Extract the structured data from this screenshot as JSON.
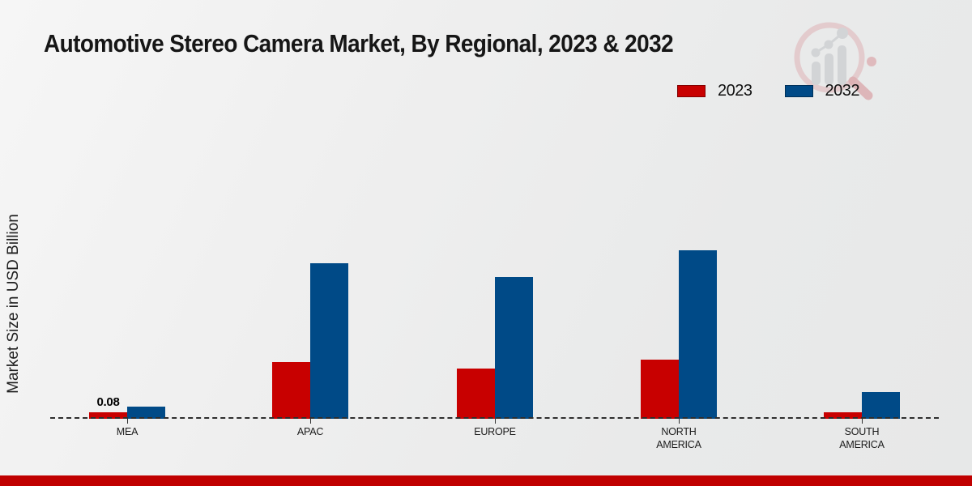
{
  "header": {
    "title": "Automotive Stereo Camera Market, By Regional, 2023 & 2032"
  },
  "icons": {
    "logo": "magnifier-bar-chart-logo"
  },
  "chart_data": {
    "type": "bar",
    "title": "Automotive Stereo Camera Market, By Regional, 2023 & 2032",
    "categories": [
      "MEA",
      "APAC",
      "EUROPE",
      "NORTH AMERICA",
      "SOUTH AMERICA"
    ],
    "series": [
      {
        "name": "2023",
        "color": "#c80000",
        "values": [
          0.08,
          0.7,
          0.62,
          0.73,
          0.08
        ]
      },
      {
        "name": "2032",
        "color": "#004a87",
        "values": [
          0.15,
          1.92,
          1.75,
          2.08,
          0.33
        ]
      }
    ],
    "xlabel": "",
    "ylabel": "Market Size in USD Billion",
    "ylim": [
      0,
      2.6
    ],
    "grid": false,
    "y_axis_ticks_visible": false,
    "legend_position": "top-right",
    "baseline_style": "dashed",
    "annotations": [
      {
        "series": "2023",
        "category": "MEA",
        "text": "0.08"
      }
    ]
  },
  "footer": {
    "accent_color": "#c00000"
  }
}
